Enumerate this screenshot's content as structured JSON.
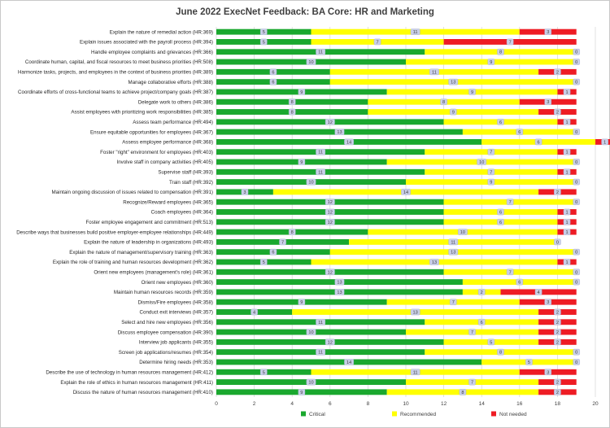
{
  "chart_data": {
    "type": "bar",
    "orientation": "horizontal",
    "stacked": true,
    "title": "June 2022 ExecNet Feedback: BA Core: HR and Marketing",
    "xlabel": "",
    "ylabel": "",
    "xlim": [
      0,
      20
    ],
    "x_ticks": [
      "0",
      "2",
      "4",
      "6",
      "8",
      "10",
      "12",
      "14",
      "16",
      "18",
      "20"
    ],
    "grid": "vertical",
    "legend": "bottom",
    "categories": [
      "Explain the nature of remedial action (HR:369)",
      "Explain issues associated with the payroll process (HR:394)",
      "Handle employee complaints and grievances (HR:366)",
      "Coordinate human, capital, and fiscal resources to meet business priorities (HR:508)",
      "Harmonize tasks, projects, and employees in the context of business priorities (HR:389)",
      "Manage collaborative efforts (HR:388)",
      "Coordinate efforts of cross-functional teams to achieve project/company goals (HR:387)",
      "Delegate work to others (HR:386)",
      "Assist employees with prioritizing work responsibilities (HR:385)",
      "Assess team performance (HR:494)",
      "Ensure equitable opportunities for employees (HR:367)",
      "Assess employee performance (HR:368)",
      "Foster \"right\" environment for employees (HR:403)",
      "Involve staff in company activities (HR:405)",
      "Supervise staff (HR:393)",
      "Train staff (HR:392)",
      "Maintain ongoing discussion of issues related to compensation (HR:391)",
      "Recognize/Reward employees (HR:365)",
      "Coach employees (HR:364)",
      "Foster employee engagement and commitment (HR:513)",
      "Describe ways that businesses build positive employer-employee relationships (HR:449)",
      "Explain the nature of leadership in organizations (HR:493)",
      "Explain the nature of management/supervisory training (HR:363)",
      "Explain the role of training and human resources development (HR:362)",
      "Orient new employees (management's role) (HR:361)",
      "Orient new employees (HR:360)",
      "Maintain human resources records (HR:359)",
      "Dismiss/Fire employees (HR:358)",
      "Conduct exit interviews (HR:357)",
      "Select and hire new employees (HR:356)",
      "Discuss employee compensation (HR:390)",
      "Interview job applicants (HR:355)",
      "Screen job applications/resumes (HR:354)",
      "Determine hiring needs (HR:353)",
      "Describe the use of technology in human resources management (HR:412)",
      "Explain the role of ethics in human resources management (HR:411)",
      "Discuss the nature of human resources management (HR:410)"
    ],
    "series": [
      {
        "name": "Critical",
        "color": "#1aa82e",
        "values": [
          5,
          5,
          11,
          10,
          6,
          6,
          9,
          8,
          8,
          12,
          13,
          14,
          11,
          9,
          11,
          10,
          3,
          12,
          12,
          12,
          8,
          7,
          6,
          5,
          12,
          13,
          13,
          9,
          4,
          11,
          10,
          12,
          11,
          14,
          5,
          10,
          9
        ]
      },
      {
        "name": "Recommended",
        "color": "#ffff00",
        "values": [
          11,
          7,
          8,
          9,
          11,
          13,
          9,
          8,
          9,
          6,
          6,
          6,
          7,
          10,
          7,
          9,
          14,
          7,
          6,
          6,
          10,
          11,
          13,
          13,
          7,
          6,
          2,
          7,
          13,
          6,
          7,
          5,
          8,
          5,
          11,
          7,
          8
        ]
      },
      {
        "name": "Not needed",
        "color": "#ee1c24",
        "values": [
          3,
          7,
          0,
          0,
          2,
          0,
          1,
          3,
          2,
          1,
          0,
          1,
          1,
          0,
          1,
          0,
          2,
          0,
          1,
          1,
          1,
          0,
          0,
          1,
          0,
          0,
          4,
          3,
          2,
          2,
          2,
          2,
          0,
          0,
          3,
          2,
          2
        ]
      }
    ]
  }
}
